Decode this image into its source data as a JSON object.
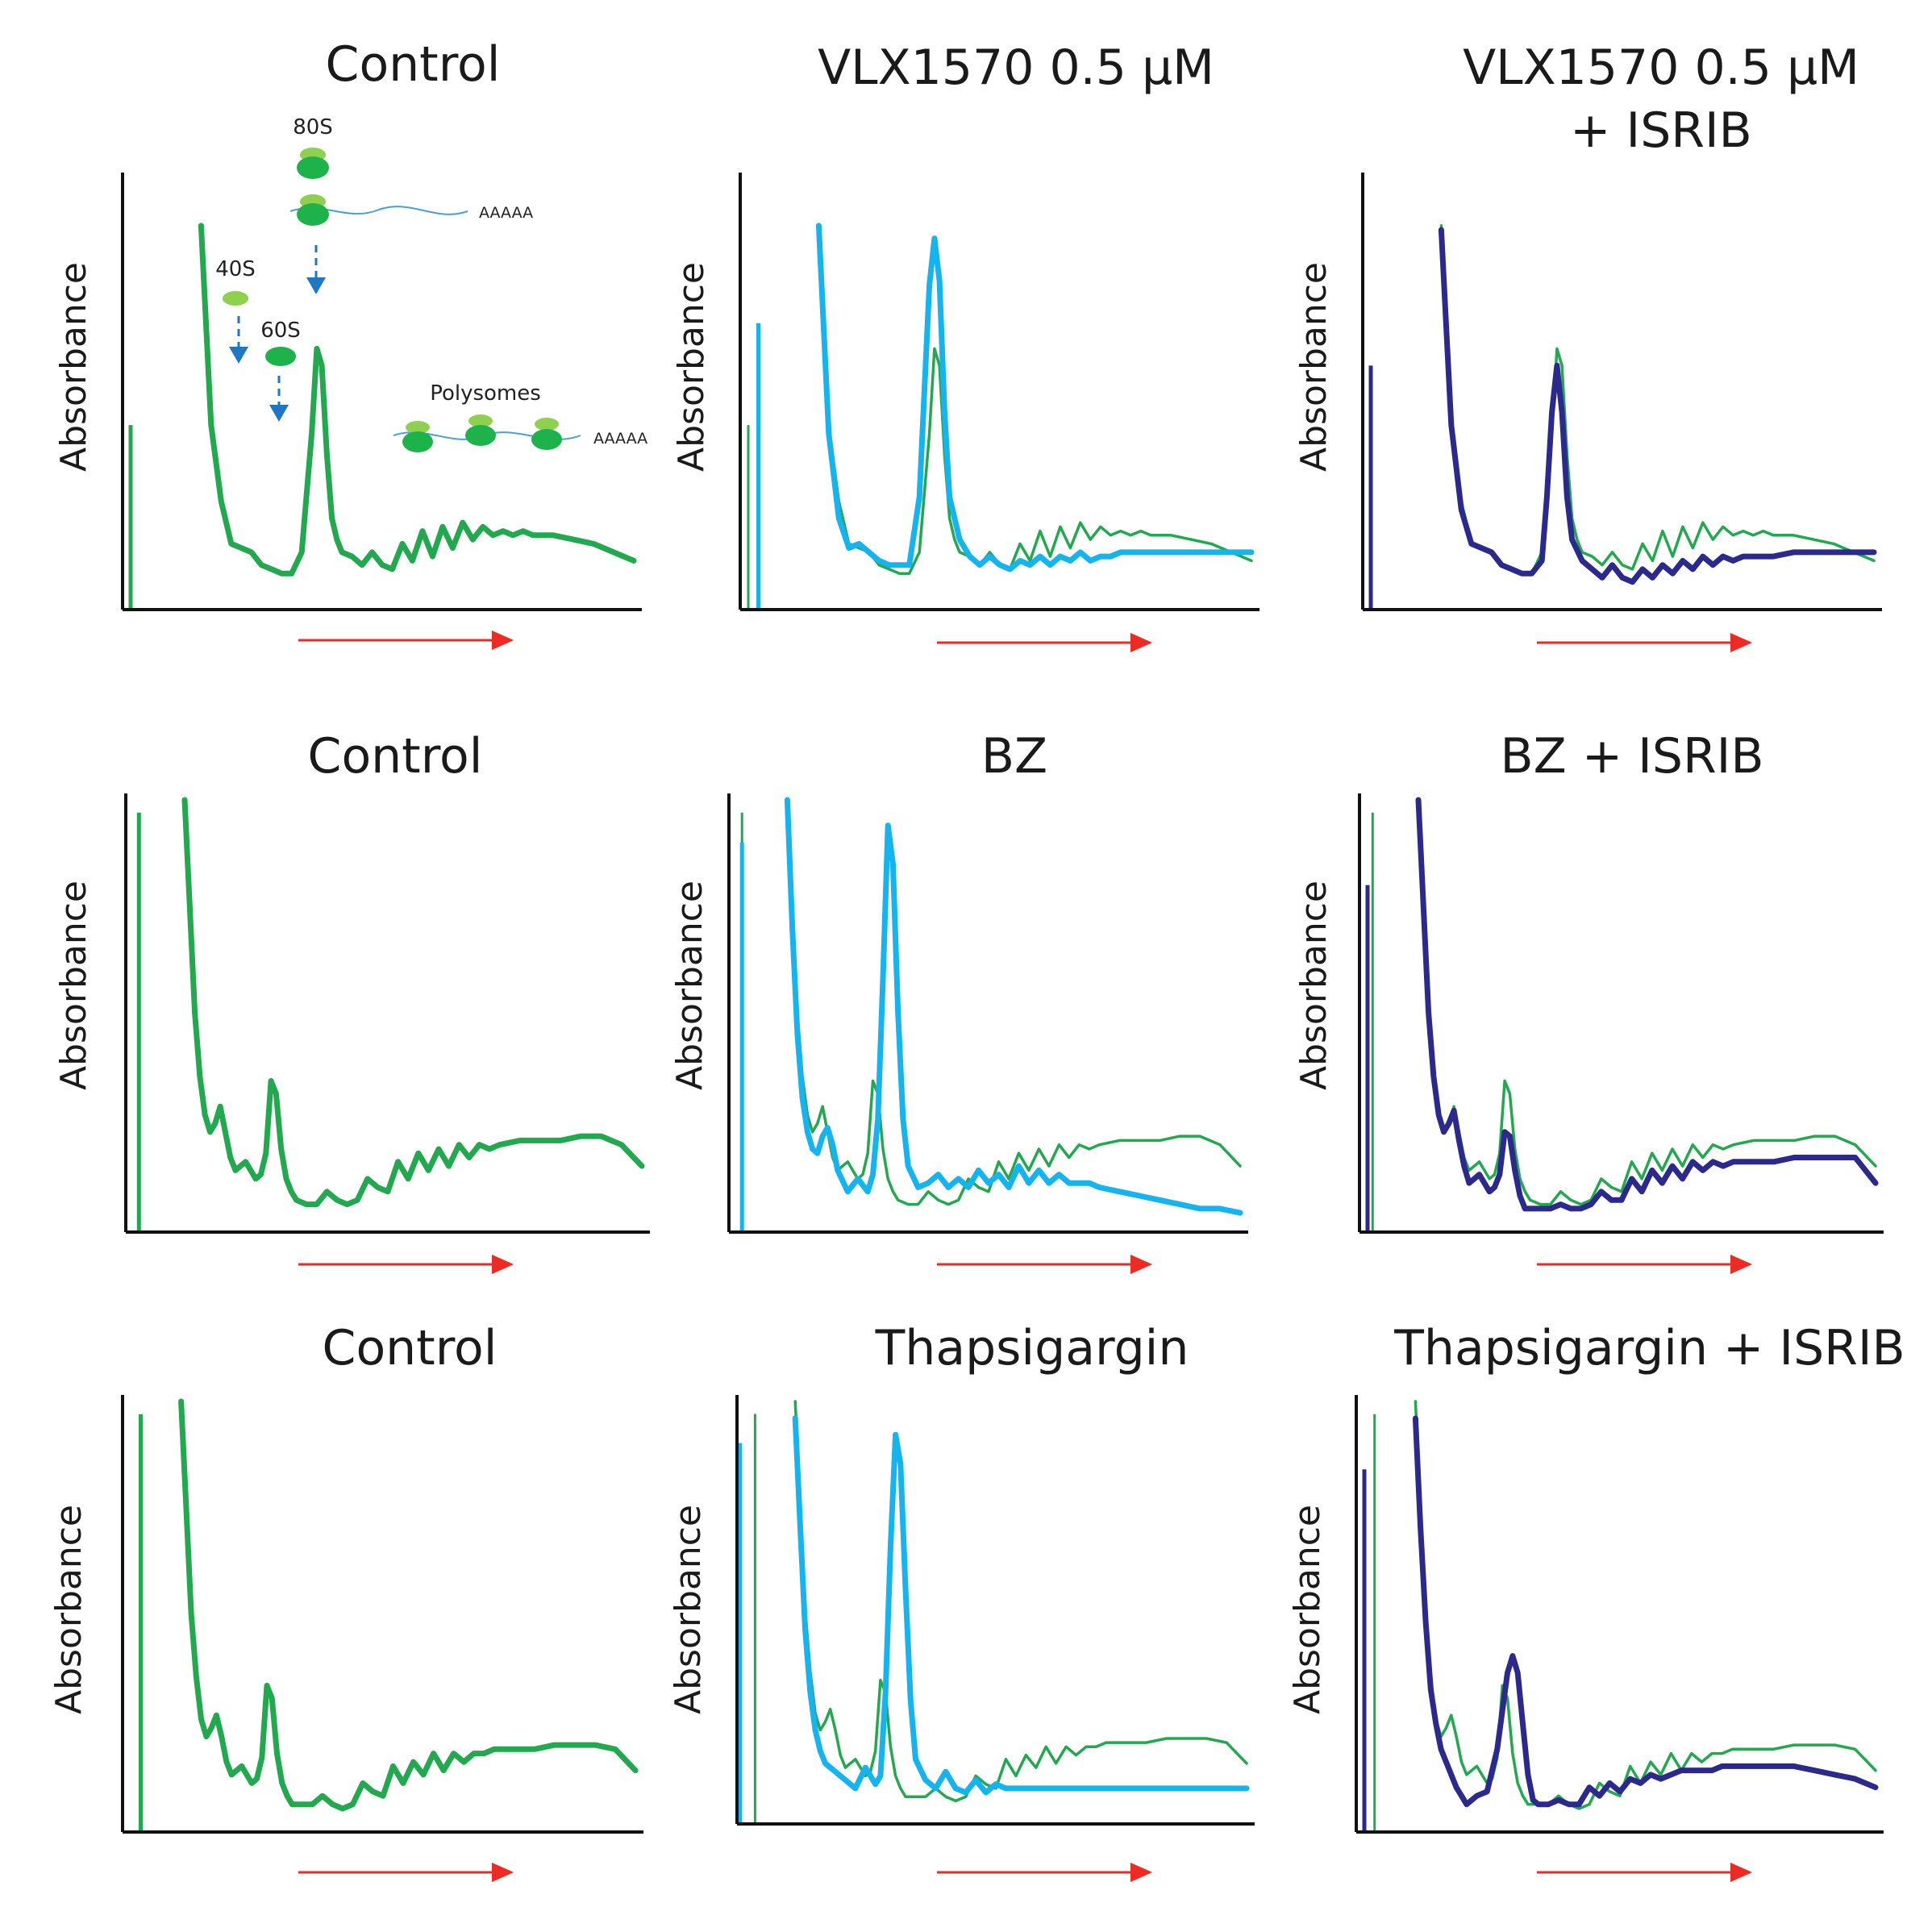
{
  "colors": {
    "control": "#22a84f",
    "treated": "#15b4ee",
    "isrib": "#2b2a8c",
    "gradient_arrow": "#ee2a24",
    "inset_arrow": "#1f77c4",
    "subunit_light": "#8fd14f",
    "subunit_dark": "#1db34a",
    "mrna": "#4a9fd8"
  },
  "chart_data": [
    {
      "type": "line",
      "id": "r1c1",
      "title": "Control",
      "title2": "",
      "ylabel": "Absorbance",
      "xlabel": "",
      "xlim": [
        0,
        100
      ],
      "ylim": [
        0,
        100
      ],
      "series": [
        {
          "name": "Control",
          "color": "control",
          "width": "bold",
          "profile": "r1_control"
        }
      ],
      "annotations": {
        "s80": "80S",
        "s40": "40S",
        "s60": "60S",
        "poly": "Polysomes",
        "polya": "AAAAA"
      }
    },
    {
      "type": "line",
      "id": "r1c2",
      "title": "VLX1570 0.5 μM",
      "title2": "",
      "ylabel": "Absorbance",
      "xlabel": "",
      "xlim": [
        0,
        100
      ],
      "ylim": [
        0,
        100
      ],
      "series": [
        {
          "name": "Control",
          "color": "control",
          "width": "thin",
          "profile": "r1_control"
        },
        {
          "name": "VLX1570 0.5 μM",
          "color": "treated",
          "width": "bold",
          "profile": "r1_vlx"
        }
      ]
    },
    {
      "type": "line",
      "id": "r1c3",
      "title": "VLX1570 0.5 μM",
      "title2": "+ ISRIB",
      "ylabel": "Absorbance",
      "xlabel": "",
      "xlim": [
        0,
        100
      ],
      "ylim": [
        0,
        100
      ],
      "series": [
        {
          "name": "Control",
          "color": "control",
          "width": "thin",
          "profile": "r1_control"
        },
        {
          "name": "VLX1570 0.5 μM + ISRIB",
          "color": "isrib",
          "width": "bold",
          "profile": "r1_vlx_isrib"
        }
      ]
    },
    {
      "type": "line",
      "id": "r2c1",
      "title": "Control",
      "title2": "",
      "ylabel": "Absorbance",
      "xlabel": "",
      "xlim": [
        0,
        100
      ],
      "ylim": [
        0,
        100
      ],
      "series": [
        {
          "name": "Control",
          "color": "control",
          "width": "bold",
          "profile": "r2_control"
        }
      ]
    },
    {
      "type": "line",
      "id": "r2c2",
      "title": "BZ",
      "title2": "",
      "ylabel": "Absorbance",
      "xlabel": "",
      "xlim": [
        0,
        100
      ],
      "ylim": [
        0,
        100
      ],
      "series": [
        {
          "name": "Control",
          "color": "control",
          "width": "thin",
          "profile": "r2_control"
        },
        {
          "name": "BZ",
          "color": "treated",
          "width": "bold",
          "profile": "r2_bz"
        }
      ]
    },
    {
      "type": "line",
      "id": "r2c3",
      "title": "BZ + ISRIB",
      "title2": "",
      "ylabel": "Absorbance",
      "xlabel": "",
      "xlim": [
        0,
        100
      ],
      "ylim": [
        0,
        100
      ],
      "series": [
        {
          "name": "Control",
          "color": "control",
          "width": "thin",
          "profile": "r2_control"
        },
        {
          "name": "BZ + ISRIB",
          "color": "isrib",
          "width": "bold",
          "profile": "r2_bz_isrib"
        }
      ]
    },
    {
      "type": "line",
      "id": "r3c1",
      "title": "Control",
      "title2": "",
      "ylabel": "Absorbance",
      "xlabel": "",
      "xlim": [
        0,
        100
      ],
      "ylim": [
        0,
        100
      ],
      "series": [
        {
          "name": "Control",
          "color": "control",
          "width": "bold",
          "profile": "r3_control"
        }
      ]
    },
    {
      "type": "line",
      "id": "r3c2",
      "title": "Thapsigargin",
      "title2": "",
      "ylabel": "Absorbance",
      "xlabel": "",
      "xlim": [
        0,
        100
      ],
      "ylim": [
        0,
        100
      ],
      "series": [
        {
          "name": "Control",
          "color": "control",
          "width": "thin",
          "profile": "r3_control"
        },
        {
          "name": "Thapsigargin",
          "color": "treated",
          "width": "bold",
          "profile": "r3_thaps"
        }
      ]
    },
    {
      "type": "line",
      "id": "r3c3",
      "title": "Thapsigargin + ISRIB",
      "title2": "",
      "ylabel": "Absorbance",
      "xlabel": "",
      "xlim": [
        0,
        100
      ],
      "ylim": [
        0,
        100
      ],
      "series": [
        {
          "name": "Control",
          "color": "control",
          "width": "thin",
          "profile": "r3_control"
        },
        {
          "name": "Thapsigargin + ISRIB",
          "color": "isrib",
          "width": "bold",
          "profile": "r3_thaps_isrib"
        }
      ]
    }
  ],
  "profiles": {
    "r1_control": {
      "spike": [
        0,
        42
      ],
      "x": [
        14,
        16,
        18,
        20,
        22,
        24,
        26,
        28,
        30,
        32,
        34,
        36,
        37,
        38,
        39,
        40,
        41,
        42,
        44,
        46,
        48,
        50,
        52,
        54,
        56,
        58,
        60,
        62,
        64,
        66,
        68,
        70,
        72,
        74,
        76,
        78,
        80,
        84,
        88,
        92,
        96,
        100
      ],
      "y": [
        89,
        42,
        24,
        14,
        13,
        12,
        9,
        8,
        7,
        7,
        12,
        40,
        60,
        56,
        35,
        20,
        15,
        12,
        11,
        9,
        12,
        9,
        8,
        14,
        10,
        17,
        11,
        18,
        13,
        19,
        15,
        18,
        16,
        17,
        16,
        17,
        16,
        16,
        15,
        14,
        12,
        10
      ]
    },
    "r1_vlx": {
      "spike": [
        2,
        66
      ],
      "x": [
        14,
        16,
        18,
        20,
        22,
        24,
        26,
        28,
        30,
        32,
        34,
        35,
        36,
        37,
        38,
        39,
        40,
        42,
        44,
        46,
        48,
        50,
        52,
        54,
        56,
        58,
        60,
        62,
        64,
        66,
        68,
        70,
        72,
        74,
        76,
        78,
        80,
        84,
        88,
        92,
        96,
        100
      ],
      "y": [
        89,
        40,
        20,
        13,
        14,
        12,
        10,
        9,
        9,
        9,
        25,
        50,
        75,
        86,
        76,
        45,
        25,
        15,
        11,
        9,
        11,
        9,
        8,
        10,
        9,
        11,
        9,
        11,
        10,
        12,
        10,
        11,
        11,
        12,
        12,
        12,
        12,
        12,
        12,
        12,
        12,
        12
      ]
    },
    "r1_vlx_isrib": {
      "spike": [
        0,
        56
      ],
      "x": [
        14,
        16,
        18,
        20,
        22,
        24,
        26,
        28,
        30,
        32,
        34,
        35,
        36,
        37,
        38,
        39,
        40,
        42,
        44,
        46,
        48,
        50,
        52,
        54,
        56,
        58,
        60,
        62,
        64,
        66,
        68,
        70,
        72,
        74,
        76,
        78,
        80,
        84,
        88,
        92,
        96,
        100
      ],
      "y": [
        88,
        42,
        22,
        14,
        13,
        12,
        9,
        8,
        7,
        7,
        10,
        25,
        45,
        56,
        45,
        25,
        15,
        10,
        8,
        6,
        9,
        6,
        5,
        8,
        6,
        9,
        7,
        10,
        8,
        11,
        9,
        11,
        10,
        11,
        11,
        11,
        11,
        12,
        12,
        12,
        12,
        12
      ]
    },
    "r2_control": {
      "spike": [
        1,
        97
      ],
      "x": [
        10,
        11,
        12,
        13,
        14,
        15,
        16,
        17,
        18,
        19,
        20,
        21,
        22,
        23,
        24,
        25,
        26,
        27,
        28,
        29,
        30,
        31,
        32,
        34,
        36,
        38,
        40,
        42,
        44,
        46,
        48,
        50,
        52,
        54,
        56,
        58,
        60,
        62,
        64,
        66,
        68,
        70,
        72,
        76,
        80,
        84,
        88,
        92,
        96,
        100
      ],
      "y": [
        100,
        75,
        50,
        35,
        26,
        22,
        24,
        28,
        22,
        16,
        13,
        14,
        15,
        13,
        11,
        12,
        17,
        34,
        31,
        18,
        11,
        8,
        6,
        5,
        5,
        8,
        6,
        5,
        6,
        11,
        9,
        8,
        15,
        11,
        17,
        13,
        18,
        14,
        19,
        16,
        19,
        18,
        19,
        20,
        20,
        20,
        21,
        21,
        19,
        14
      ]
    },
    "r2_bz": {
      "spike": [
        1,
        90
      ],
      "x": [
        10,
        11,
        12,
        13,
        14,
        15,
        16,
        17,
        18,
        19,
        20,
        22,
        24,
        26,
        27,
        28,
        29,
        30,
        31,
        32,
        33,
        34,
        36,
        38,
        40,
        42,
        44,
        46,
        48,
        50,
        52,
        54,
        56,
        58,
        60,
        62,
        64,
        66,
        68,
        70,
        72,
        76,
        80,
        84,
        88,
        92,
        96,
        100
      ],
      "y": [
        100,
        70,
        45,
        30,
        22,
        18,
        17,
        21,
        23,
        19,
        13,
        8,
        11,
        8,
        12,
        25,
        58,
        94,
        85,
        50,
        25,
        14,
        9,
        10,
        12,
        9,
        11,
        9,
        13,
        10,
        12,
        9,
        14,
        10,
        13,
        10,
        12,
        10,
        10,
        10,
        9,
        8,
        7,
        6,
        5,
        4,
        4,
        3
      ]
    },
    "r2_bz_isrib": {
      "spike": [
        0,
        80
      ],
      "x": [
        10,
        11,
        12,
        13,
        14,
        15,
        16,
        17,
        18,
        19,
        20,
        21,
        22,
        23,
        24,
        25,
        26,
        27,
        28,
        29,
        30,
        31,
        32,
        34,
        36,
        38,
        40,
        42,
        44,
        46,
        48,
        50,
        52,
        54,
        56,
        58,
        60,
        62,
        64,
        66,
        68,
        70,
        72,
        76,
        80,
        84,
        88,
        92,
        96,
        100
      ],
      "y": [
        100,
        75,
        50,
        35,
        26,
        22,
        24,
        27,
        20,
        14,
        10,
        11,
        12,
        10,
        8,
        9,
        12,
        22,
        21,
        13,
        7,
        4,
        4,
        4,
        4,
        5,
        4,
        4,
        5,
        8,
        6,
        6,
        11,
        8,
        13,
        10,
        14,
        11,
        15,
        13,
        15,
        14,
        15,
        15,
        15,
        16,
        16,
        16,
        16,
        10
      ]
    },
    "r3_control": {
      "spike": [
        2,
        97
      ],
      "x": [
        10,
        11,
        12,
        13,
        14,
        15,
        16,
        17,
        18,
        19,
        20,
        21,
        22,
        23,
        24,
        25,
        26,
        27,
        28,
        29,
        30,
        31,
        32,
        34,
        36,
        38,
        40,
        42,
        44,
        46,
        48,
        50,
        52,
        54,
        56,
        58,
        60,
        62,
        64,
        66,
        68,
        70,
        72,
        76,
        80,
        84,
        88,
        92,
        96,
        100
      ],
      "y": [
        100,
        75,
        50,
        35,
        25,
        21,
        23,
        26,
        21,
        15,
        12,
        13,
        14,
        12,
        10,
        11,
        16,
        33,
        30,
        17,
        10,
        7,
        5,
        5,
        5,
        7,
        5,
        4,
        5,
        10,
        8,
        7,
        14,
        10,
        15,
        12,
        17,
        13,
        17,
        15,
        17,
        17,
        18,
        18,
        18,
        19,
        19,
        19,
        18,
        13
      ]
    },
    "r3_thaps": {
      "spike": [
        -1,
        90
      ],
      "x": [
        10,
        11,
        12,
        13,
        14,
        15,
        16,
        17,
        18,
        19,
        20,
        22,
        24,
        26,
        27,
        28,
        29,
        30,
        31,
        32,
        33,
        34,
        36,
        38,
        40,
        42,
        44,
        46,
        48,
        50,
        52,
        54,
        56,
        58,
        60,
        62,
        64,
        66,
        68,
        70,
        72,
        76,
        80,
        84,
        88,
        92,
        96,
        100
      ],
      "y": [
        96,
        70,
        45,
        30,
        21,
        16,
        13,
        12,
        11,
        10,
        9,
        7,
        12,
        8,
        10,
        30,
        65,
        92,
        85,
        55,
        28,
        14,
        9,
        7,
        11,
        7,
        6,
        9,
        6,
        8,
        7,
        7,
        7,
        7,
        7,
        7,
        7,
        7,
        7,
        7,
        7,
        7,
        7,
        7,
        7,
        7,
        7,
        7
      ]
    },
    "r3_thaps_isrib": {
      "spike": [
        0,
        84
      ],
      "x": [
        10,
        11,
        12,
        13,
        14,
        15,
        16,
        17,
        18,
        19,
        20,
        22,
        24,
        26,
        28,
        29,
        30,
        31,
        32,
        33,
        34,
        36,
        38,
        40,
        42,
        44,
        46,
        48,
        50,
        52,
        54,
        56,
        58,
        60,
        62,
        64,
        66,
        68,
        70,
        72,
        76,
        80,
        84,
        88,
        92,
        96,
        100
      ],
      "y": [
        96,
        70,
        48,
        32,
        24,
        18,
        15,
        12,
        9,
        7,
        5,
        7,
        8,
        18,
        36,
        40,
        36,
        24,
        12,
        6,
        5,
        5,
        6,
        5,
        5,
        9,
        7,
        10,
        8,
        11,
        10,
        12,
        11,
        12,
        13,
        13,
        13,
        13,
        14,
        14,
        14,
        14,
        14,
        13,
        12,
        11,
        9
      ]
    }
  }
}
